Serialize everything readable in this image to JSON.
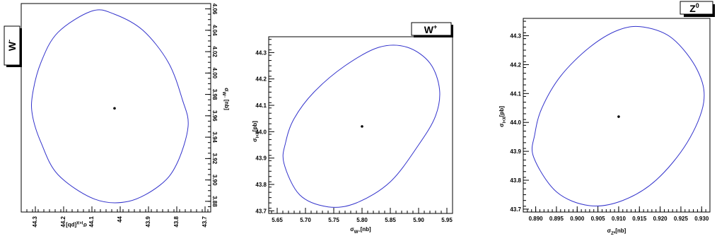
{
  "chart_data": [
    {
      "type": "scatter",
      "panel": "W-",
      "title": "W⁻",
      "xlabel": "σ_{l+X}[pb]",
      "ylabel": "σ_{W⁻}[nb]",
      "x_reversed": true,
      "xlim": [
        44.35,
        43.68
      ],
      "ylim": [
        3.87,
        4.065
      ],
      "xticks": [
        44.3,
        44.2,
        44.1,
        44.0,
        43.9,
        43.8,
        43.7
      ],
      "xticklabels": [
        "44.3",
        "44.2",
        "44.1",
        "44",
        "43.9",
        "43.8",
        "43.7"
      ],
      "yticks": [
        3.88,
        3.9,
        3.92,
        3.94,
        3.96,
        3.98,
        4.0,
        4.02,
        4.04,
        4.06
      ],
      "yticklabels": [
        "3.88",
        "3.90",
        "3.92",
        "3.94",
        "3.96",
        "3.98",
        "4.00",
        "4.02",
        "4.04",
        "4.06"
      ],
      "ellipse_color": "#3333cc",
      "ellipse": [
        {
          "x": 44.31,
          "y": 3.98
        },
        {
          "x": 44.28,
          "y": 4.01
        },
        {
          "x": 44.22,
          "y": 4.038
        },
        {
          "x": 44.1,
          "y": 4.058
        },
        {
          "x": 44.02,
          "y": 4.055
        },
        {
          "x": 43.92,
          "y": 4.04
        },
        {
          "x": 43.83,
          "y": 4.01
        },
        {
          "x": 43.78,
          "y": 3.975
        },
        {
          "x": 43.76,
          "y": 3.95
        },
        {
          "x": 43.8,
          "y": 3.915
        },
        {
          "x": 43.86,
          "y": 3.895
        },
        {
          "x": 43.97,
          "y": 3.88
        },
        {
          "x": 44.09,
          "y": 3.882
        },
        {
          "x": 44.22,
          "y": 3.905
        },
        {
          "x": 44.28,
          "y": 3.935
        },
        {
          "x": 44.31,
          "y": 3.96
        }
      ],
      "central_point": {
        "x": 44.02,
        "y": 3.967
      }
    },
    {
      "type": "scatter",
      "panel": "W+",
      "title": "W⁺",
      "xlabel": "σ_{W⁺}[nb]",
      "ylabel": "σ_{l+X}[pb]",
      "xlim": [
        5.635,
        5.96
      ],
      "ylim": [
        43.69,
        44.36
      ],
      "xticks": [
        5.65,
        5.7,
        5.75,
        5.8,
        5.85,
        5.9,
        5.95
      ],
      "xticklabels": [
        "5.65",
        "5.70",
        "5.75",
        "5.80",
        "5.85",
        "5.90",
        "5.95"
      ],
      "yticks": [
        43.7,
        43.8,
        43.9,
        44.0,
        44.1,
        44.2,
        44.3
      ],
      "yticklabels": [
        "43.7",
        "43.8",
        "43.9",
        "44.0",
        "44.1",
        "44.2",
        "44.3"
      ],
      "ellipse_color": "#3333cc",
      "ellipse": [
        {
          "x": 5.662,
          "y": 43.88
        },
        {
          "x": 5.665,
          "y": 43.96
        },
        {
          "x": 5.68,
          "y": 44.05
        },
        {
          "x": 5.715,
          "y": 44.15
        },
        {
          "x": 5.77,
          "y": 44.25
        },
        {
          "x": 5.83,
          "y": 44.32
        },
        {
          "x": 5.88,
          "y": 44.32
        },
        {
          "x": 5.92,
          "y": 44.26
        },
        {
          "x": 5.937,
          "y": 44.16
        },
        {
          "x": 5.93,
          "y": 44.06
        },
        {
          "x": 5.9,
          "y": 43.95
        },
        {
          "x": 5.85,
          "y": 43.81
        },
        {
          "x": 5.79,
          "y": 43.73
        },
        {
          "x": 5.74,
          "y": 43.715
        },
        {
          "x": 5.69,
          "y": 43.76
        }
      ],
      "central_point": {
        "x": 5.8,
        "y": 44.02
      }
    },
    {
      "type": "scatter",
      "panel": "Z0",
      "title": "Z⁰",
      "xlabel": "σ_{Z⁰}[nb]",
      "ylabel": "σ_{l+X}[pb]",
      "xlim": [
        0.887,
        0.932
      ],
      "ylim": [
        43.69,
        44.36
      ],
      "xticks": [
        0.89,
        0.895,
        0.9,
        0.905,
        0.91,
        0.915,
        0.92,
        0.925,
        0.93
      ],
      "xticklabels": [
        "0.890",
        "0.895",
        "0.900",
        "0.905",
        "0.910",
        "0.915",
        "0.920",
        "0.925",
        "0.930"
      ],
      "yticks": [
        43.7,
        43.8,
        43.9,
        44.0,
        44.1,
        44.2,
        44.3
      ],
      "yticklabels": [
        "43.7",
        "43.8",
        "43.9",
        "44.0",
        "44.1",
        "44.2",
        "44.3"
      ],
      "ellipse_color": "#3333cc",
      "ellipse": [
        {
          "x": 0.8895,
          "y": 43.88
        },
        {
          "x": 0.8898,
          "y": 43.96
        },
        {
          "x": 0.8915,
          "y": 44.05
        },
        {
          "x": 0.896,
          "y": 44.16
        },
        {
          "x": 0.903,
          "y": 44.26
        },
        {
          "x": 0.91,
          "y": 44.32
        },
        {
          "x": 0.916,
          "y": 44.33
        },
        {
          "x": 0.923,
          "y": 44.29
        },
        {
          "x": 0.929,
          "y": 44.18
        },
        {
          "x": 0.9305,
          "y": 44.07
        },
        {
          "x": 0.9265,
          "y": 43.93
        },
        {
          "x": 0.919,
          "y": 43.8
        },
        {
          "x": 0.911,
          "y": 43.73
        },
        {
          "x": 0.903,
          "y": 43.712
        },
        {
          "x": 0.895,
          "y": 43.76
        }
      ],
      "central_point": {
        "x": 0.91,
        "y": 44.02
      }
    }
  ]
}
